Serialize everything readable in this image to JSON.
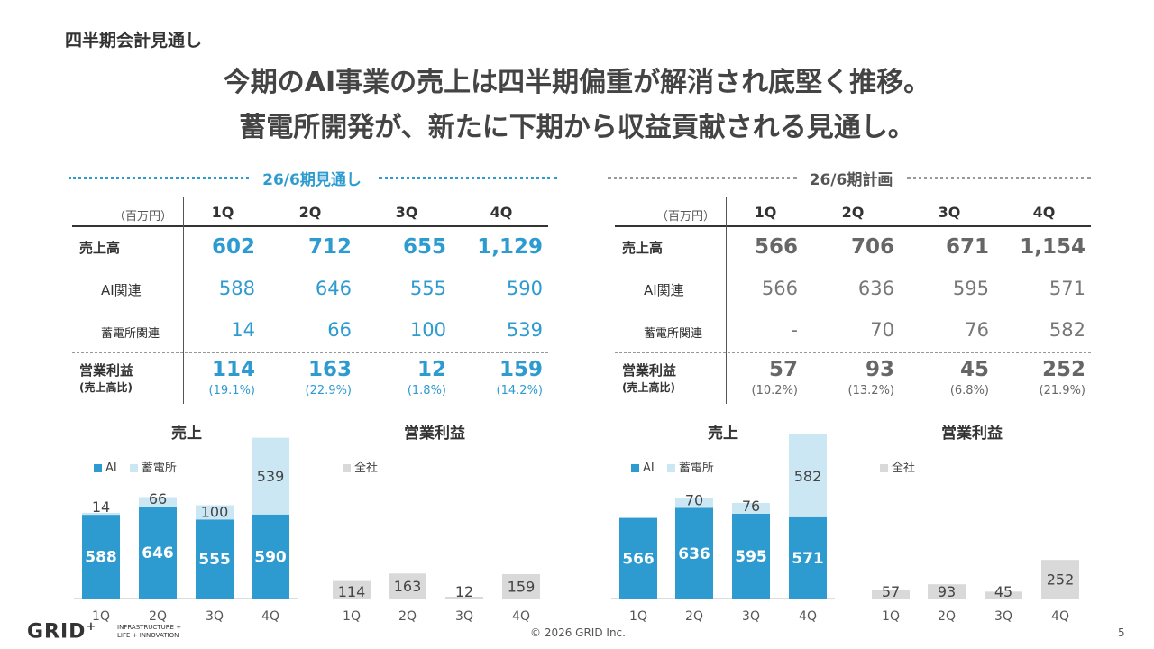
{
  "section_label": "四半期会計見通し",
  "headline": [
    "今期のAI事業の売上は四半期偏重が解消され底堅く推移。",
    "蓄電所開発が、新たに下期から収益貢献される見通し。"
  ],
  "colors": {
    "accent": "#2E9BD0",
    "gray_text": "#666666",
    "light_blue": "#CCE7F4",
    "gray_bar": "#D9D9D9"
  },
  "left": {
    "title": "26/6期見通し",
    "unit": "（百万円）",
    "quarters": [
      "1Q",
      "2Q",
      "3Q",
      "4Q"
    ],
    "rows": {
      "sales_label": "売上高",
      "sales": [
        "602",
        "712",
        "655",
        "1,129"
      ],
      "ai_label": "AI関連",
      "ai": [
        "588",
        "646",
        "555",
        "590"
      ],
      "storage_label": "蓄電所関連",
      "storage": [
        "14",
        "66",
        "100",
        "539"
      ],
      "op_label": "営業利益",
      "op_sub": "(売上高比)",
      "op": [
        "114",
        "163",
        "12",
        "159"
      ],
      "op_pct": [
        "(19.1%)",
        "(22.9%)",
        "(1.8%)",
        "(14.2%)"
      ]
    }
  },
  "right": {
    "title": "26/6期計画",
    "unit": "（百万円）",
    "quarters": [
      "1Q",
      "2Q",
      "3Q",
      "4Q"
    ],
    "rows": {
      "sales_label": "売上高",
      "sales": [
        "566",
        "706",
        "671",
        "1,154"
      ],
      "ai_label": "AI関連",
      "ai": [
        "566",
        "636",
        "595",
        "571"
      ],
      "storage_label": "蓄電所関連",
      "storage": [
        "-",
        "70",
        "76",
        "582"
      ],
      "op_label": "営業利益",
      "op_sub": "(売上高比)",
      "op": [
        "57",
        "93",
        "45",
        "252"
      ],
      "op_pct": [
        "(10.2%)",
        "(13.2%)",
        "(6.8%)",
        "(21.9%)"
      ]
    }
  },
  "chart_data": [
    {
      "type": "bar",
      "stacked": true,
      "title": "売上",
      "categories": [
        "1Q",
        "2Q",
        "3Q",
        "4Q"
      ],
      "series": [
        {
          "name": "AI",
          "values": [
            588,
            646,
            555,
            590
          ]
        },
        {
          "name": "蓄電所",
          "values": [
            14,
            66,
            100,
            539
          ]
        }
      ]
    },
    {
      "type": "bar",
      "title": "営業利益",
      "categories": [
        "1Q",
        "2Q",
        "3Q",
        "4Q"
      ],
      "series": [
        {
          "name": "全社",
          "values": [
            114,
            163,
            12,
            159
          ]
        }
      ]
    },
    {
      "type": "bar",
      "stacked": true,
      "title": "売上",
      "categories": [
        "1Q",
        "2Q",
        "3Q",
        "4Q"
      ],
      "series": [
        {
          "name": "AI",
          "values": [
            566,
            636,
            595,
            571
          ]
        },
        {
          "name": "蓄電所",
          "values": [
            0,
            70,
            76,
            582
          ]
        }
      ]
    },
    {
      "type": "bar",
      "title": "営業利益",
      "categories": [
        "1Q",
        "2Q",
        "3Q",
        "4Q"
      ],
      "series": [
        {
          "name": "全社",
          "values": [
            57,
            93,
            45,
            252
          ]
        }
      ]
    }
  ],
  "footer": {
    "logo": "GRID",
    "logo_sup": "+",
    "tagline1": "INFRASTRUCTURE +",
    "tagline2": "LIFE + INNOVATION",
    "copyright": "© 2026 GRID Inc.",
    "page": "5"
  }
}
